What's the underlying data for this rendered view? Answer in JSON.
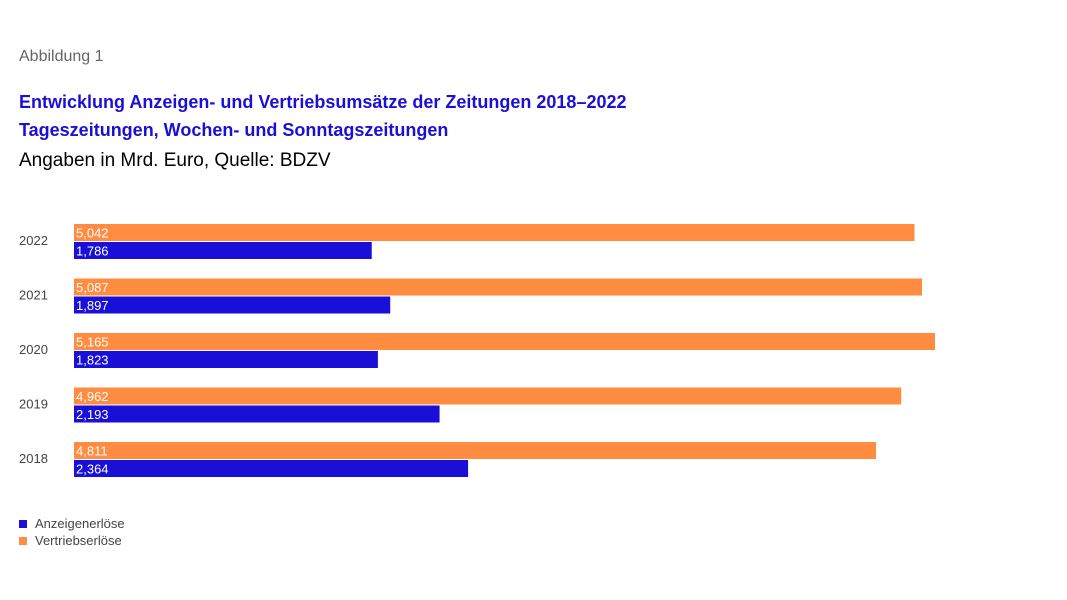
{
  "figure_label": "Abbildung 1",
  "colors": {
    "anzeigen": "#1a0fd6",
    "vertrieb": "#ff8c40"
  },
  "chart_data": {
    "type": "bar",
    "orientation": "horizontal",
    "title": "Entwicklung Anzeigen- und Vertriebsumsätze der Zeitungen 2018–2022",
    "subtitle": "Tageszeitungen, Wochen- und Sonntagszeitungen",
    "note": "Angaben in Mrd. Euro, Quelle: BDZV",
    "categories": [
      "2022",
      "2021",
      "2020",
      "2019",
      "2018"
    ],
    "series": [
      {
        "name": "Vertriebserlöse",
        "values": [
          5.042,
          5.087,
          5.165,
          4.962,
          4.811
        ],
        "labels": [
          "5,042",
          "5,087",
          "5,165",
          "4,962",
          "4,811"
        ]
      },
      {
        "name": "Anzeigenerlöse",
        "values": [
          1.786,
          1.897,
          1.823,
          2.193,
          2.364
        ],
        "labels": [
          "1,786",
          "1,897",
          "1,823",
          "2,193",
          "2,364"
        ]
      }
    ],
    "xlim": [
      0,
      5.165
    ],
    "grid": false,
    "legend_position": "bottom-left"
  },
  "legend": [
    {
      "label": "Anzeigenerlöse",
      "color": "#1a0fd6"
    },
    {
      "label": "Vertriebserlöse",
      "color": "#ff8c40"
    }
  ]
}
